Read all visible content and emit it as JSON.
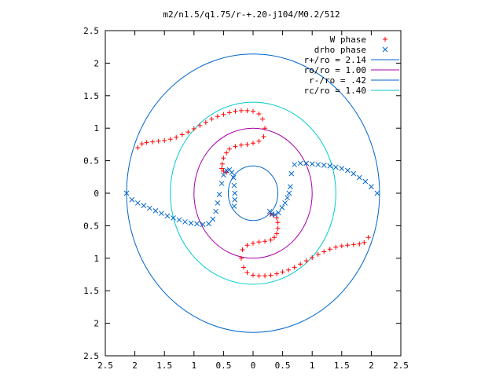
{
  "chart_data": {
    "type": "scatter",
    "title": "m2/n1.5/q1.75/r-+.20-j104/M0.2/512",
    "xlabel": "",
    "ylabel": "",
    "xlim": [
      -2.5,
      2.5
    ],
    "ylim": [
      -2.5,
      2.5
    ],
    "x_ticks": [
      -2.5,
      -2,
      -1.5,
      -1,
      -0.5,
      0,
      0.5,
      1,
      1.5,
      2,
      2.5
    ],
    "x_tick_labels": [
      "2.5",
      "2",
      "1.5",
      "1",
      "0.5",
      "0",
      "0.5",
      "1",
      "1.5",
      "2",
      "2.5"
    ],
    "y_ticks": [
      2.5,
      2,
      1.5,
      1,
      0.5,
      0,
      -0.5,
      -1,
      -1.5,
      -2,
      -2.5
    ],
    "y_tick_labels": [
      "2.5",
      "2",
      "1.5",
      "1",
      "0.5",
      "0",
      "0.5",
      "1",
      "1.5",
      "2",
      "2.5"
    ],
    "grid": false,
    "legend_position": "top-right",
    "series": [
      {
        "name": "W phase",
        "kind": "points",
        "marker": "plus",
        "color": "#ff0000",
        "x": [
          -1.95,
          -1.88,
          -1.8,
          -1.7,
          -1.6,
          -1.5,
          -1.4,
          -1.3,
          -1.2,
          -1.1,
          -1.0,
          -0.9,
          -0.8,
          -0.7,
          -0.6,
          -0.5,
          -0.4,
          -0.3,
          -0.2,
          -0.1,
          0.0,
          0.1,
          0.16,
          0.2,
          0.18,
          0.1,
          0.0,
          -0.1,
          -0.2,
          -0.3,
          -0.4,
          -0.45,
          -0.5,
          -0.52,
          -0.53,
          -0.5,
          -0.45,
          1.95,
          1.88,
          1.8,
          1.7,
          1.6,
          1.5,
          1.4,
          1.3,
          1.2,
          1.1,
          1.0,
          0.9,
          0.8,
          0.7,
          0.6,
          0.5,
          0.4,
          0.3,
          0.2,
          0.1,
          0.0,
          -0.1,
          -0.16,
          -0.2,
          -0.18,
          -0.1,
          0.0,
          0.1,
          0.2,
          0.3,
          0.36,
          0.4,
          0.42,
          0.42,
          0.4,
          0.35,
          0.3
        ],
        "y": [
          0.7,
          0.76,
          0.78,
          0.79,
          0.8,
          0.81,
          0.83,
          0.86,
          0.9,
          0.94,
          0.99,
          1.04,
          1.09,
          1.14,
          1.18,
          1.21,
          1.24,
          1.26,
          1.27,
          1.27,
          1.26,
          1.22,
          1.14,
          1.0,
          0.87,
          0.8,
          0.77,
          0.75,
          0.74,
          0.72,
          0.68,
          0.62,
          0.54,
          0.45,
          0.38,
          0.34,
          0.32,
          -0.68,
          -0.76,
          -0.78,
          -0.79,
          -0.8,
          -0.81,
          -0.83,
          -0.86,
          -0.9,
          -0.94,
          -0.99,
          -1.04,
          -1.09,
          -1.14,
          -1.18,
          -1.21,
          -1.24,
          -1.26,
          -1.27,
          -1.27,
          -1.26,
          -1.22,
          -1.14,
          -1.0,
          -0.87,
          -0.8,
          -0.77,
          -0.75,
          -0.74,
          -0.72,
          -0.68,
          -0.62,
          -0.54,
          -0.45,
          -0.38,
          -0.34,
          -0.32
        ]
      },
      {
        "name": "drho phase",
        "kind": "points",
        "marker": "cross",
        "color": "#0066cc",
        "x": [
          -2.14,
          -2.05,
          -1.95,
          -1.85,
          -1.75,
          -1.65,
          -1.55,
          -1.45,
          -1.35,
          -1.25,
          -1.15,
          -1.05,
          -0.95,
          -0.85,
          -0.75,
          -0.68,
          -0.63,
          -0.6,
          -0.57,
          -0.53,
          -0.5,
          -0.45,
          -0.4,
          -0.36,
          -0.33,
          -0.32,
          -0.31,
          -0.31,
          -0.32,
          2.1,
          2.0,
          1.9,
          1.8,
          1.7,
          1.6,
          1.5,
          1.4,
          1.3,
          1.2,
          1.1,
          1.0,
          0.9,
          0.8,
          0.7,
          0.65,
          0.63,
          0.61,
          0.58,
          0.54,
          0.49,
          0.43,
          0.37,
          0.32,
          0.28
        ],
        "y": [
          0.0,
          -0.1,
          -0.15,
          -0.19,
          -0.23,
          -0.27,
          -0.31,
          -0.35,
          -0.38,
          -0.41,
          -0.44,
          -0.46,
          -0.47,
          -0.48,
          -0.47,
          -0.4,
          -0.28,
          -0.15,
          -0.02,
          0.15,
          0.28,
          0.35,
          0.36,
          0.32,
          0.24,
          0.12,
          0.0,
          -0.1,
          -0.2,
          0.0,
          0.1,
          0.18,
          0.24,
          0.3,
          0.35,
          0.38,
          0.4,
          0.42,
          0.43,
          0.44,
          0.45,
          0.46,
          0.46,
          0.44,
          0.3,
          0.1,
          0.0,
          -0.07,
          -0.15,
          -0.22,
          -0.3,
          -0.33,
          -0.32,
          -0.28
        ]
      },
      {
        "name": "r+/ro = 2.14",
        "kind": "circle",
        "radius": 2.14,
        "color": "#0066cc"
      },
      {
        "name": "ro/ro = 1.00",
        "kind": "circle",
        "radius": 1.0,
        "color": "#aa00aa"
      },
      {
        "name": "r-/ro = .42",
        "kind": "circle",
        "radius": 0.42,
        "color": "#0066cc"
      },
      {
        "name": "rc/ro = 1.40",
        "kind": "circle",
        "radius": 1.4,
        "color": "#00cccc"
      }
    ]
  }
}
